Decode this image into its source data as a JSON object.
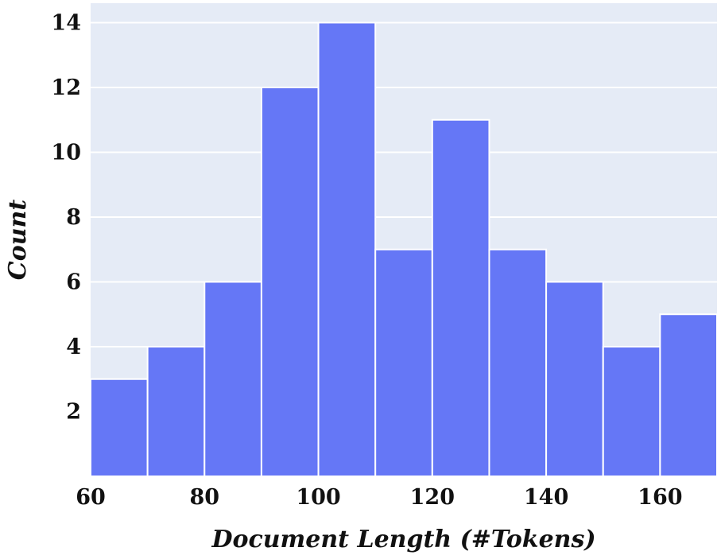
{
  "chart_data": {
    "type": "bar",
    "subtype": "histogram",
    "title": "",
    "xlabel": "Document Length (#Tokens)",
    "ylabel": "Count",
    "bin_width": 10,
    "bins": [
      {
        "x0": 60,
        "x1": 70,
        "count": 3
      },
      {
        "x0": 70,
        "x1": 80,
        "count": 4
      },
      {
        "x0": 80,
        "x1": 90,
        "count": 6
      },
      {
        "x0": 90,
        "x1": 100,
        "count": 12
      },
      {
        "x0": 100,
        "x1": 110,
        "count": 14
      },
      {
        "x0": 110,
        "x1": 120,
        "count": 7
      },
      {
        "x0": 120,
        "x1": 130,
        "count": 11
      },
      {
        "x0": 130,
        "x1": 140,
        "count": 7
      },
      {
        "x0": 140,
        "x1": 150,
        "count": 6
      },
      {
        "x0": 150,
        "x1": 160,
        "count": 4
      },
      {
        "x0": 160,
        "x1": 170,
        "count": 5
      }
    ],
    "xlim": [
      60,
      170
    ],
    "ylim": [
      0,
      14.6
    ],
    "xticks": [
      "60",
      "80",
      "100",
      "120",
      "140",
      "160"
    ],
    "yticks": [
      "2",
      "4",
      "6",
      "8",
      "10",
      "12",
      "14"
    ],
    "grid": true,
    "legend": "none",
    "colors": {
      "bar": "#6577F6",
      "background": "#E5EBF6",
      "grid": "#FFFFFF",
      "bar_edge": "#FFFFFF"
    }
  }
}
